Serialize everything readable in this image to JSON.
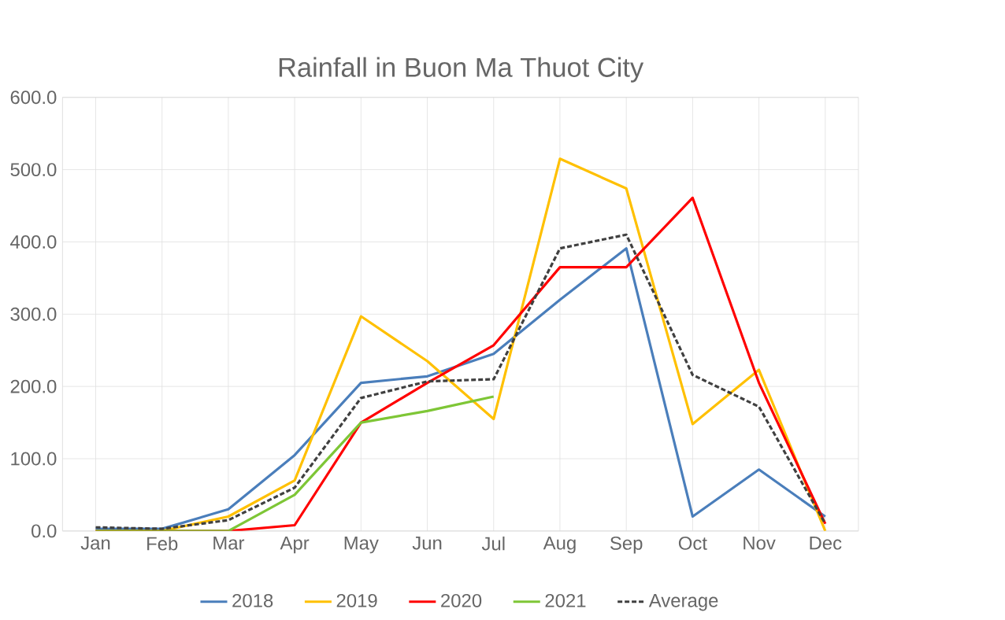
{
  "chart_data": {
    "type": "line",
    "title": "Rainfall in Buon Ma Thuot City",
    "categories": [
      "Jan",
      "Feb",
      "Mar",
      "Apr",
      "May",
      "Jun",
      "Jul",
      "Aug",
      "Sep",
      "Oct",
      "Nov",
      "Dec"
    ],
    "series": [
      {
        "name": "2018",
        "color": "#4a7ebb",
        "values": [
          3,
          3,
          30,
          105,
          205,
          214,
          245,
          320,
          391,
          20,
          85,
          20
        ]
      },
      {
        "name": "2019",
        "color": "#ffc000",
        "values": [
          0,
          0,
          20,
          70,
          297,
          235,
          155,
          515,
          474,
          148,
          223,
          0
        ]
      },
      {
        "name": "2020",
        "color": "#ff0000",
        "values": [
          0,
          0,
          0,
          8,
          150,
          205,
          257,
          365,
          365,
          461,
          205,
          10
        ]
      },
      {
        "name": "2021",
        "color": "#7ec636",
        "values": [
          0,
          0,
          0,
          50,
          150,
          166,
          186,
          null,
          null,
          null,
          null,
          null
        ]
      },
      {
        "name": "Average",
        "color": "#404040",
        "line_style": "dashed",
        "values": [
          5,
          3,
          15,
          60,
          184,
          207,
          210,
          391,
          410,
          216,
          172,
          10
        ]
      }
    ],
    "ylim": [
      0,
      600
    ],
    "yticks": [
      {
        "value": 0,
        "label": "0.0"
      },
      {
        "value": 100,
        "label": "100.0"
      },
      {
        "value": 200,
        "label": "200.0"
      },
      {
        "value": 300,
        "label": "300.0"
      },
      {
        "value": 400,
        "label": "400.0"
      },
      {
        "value": 500,
        "label": "500.0"
      },
      {
        "value": 600,
        "label": "600.0"
      }
    ],
    "grid": true,
    "legend": "bottom",
    "line_style": "solid",
    "marker": "none"
  }
}
